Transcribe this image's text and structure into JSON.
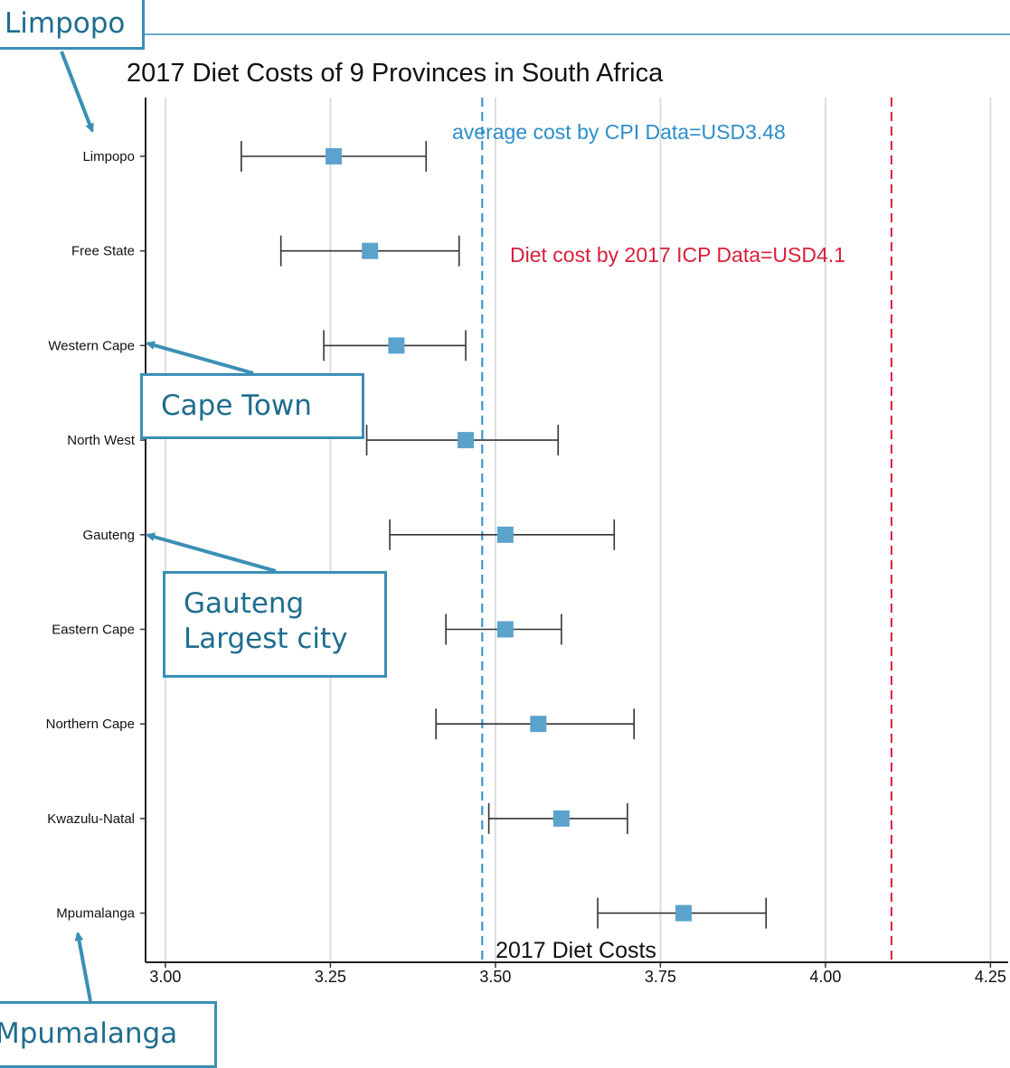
{
  "chart_data": {
    "type": "errorbar",
    "title": "2017 Diet Costs of 9 Provinces in South Africa",
    "xlabel": "2017 Diet Costs",
    "ylabel": "",
    "xlim": [
      2.97,
      4.27
    ],
    "xticks": [
      "3.00",
      "3.25",
      "3.50",
      "3.75",
      "4.00",
      "4.25"
    ],
    "grid": true,
    "categories": [
      "Limpopo",
      "Free State",
      "Western Cape",
      "North West",
      "Gauteng",
      "Eastern Cape",
      "Northern Cape",
      "Kwazulu-Natal",
      "Mpumalanga"
    ],
    "series": [
      {
        "values": [
          3.255,
          3.31,
          3.35,
          3.455,
          3.515,
          3.515,
          3.565,
          3.6,
          3.785
        ],
        "lower": [
          3.115,
          3.175,
          3.24,
          3.305,
          3.34,
          3.425,
          3.41,
          3.49,
          3.655
        ],
        "upper": [
          3.395,
          3.445,
          3.455,
          3.595,
          3.68,
          3.6,
          3.71,
          3.7,
          3.91
        ],
        "color": "#5ba3cc"
      }
    ],
    "reference_lines": [
      {
        "x": 3.48,
        "label": "average cost by CPI Data=USD3.48",
        "color": "#2c8fc9",
        "dash": true
      },
      {
        "x": 4.1,
        "label": "Diet cost by 2017 ICP Data=USD4.1",
        "color": "#d81f3c",
        "dash": true
      }
    ]
  },
  "callouts": {
    "limpopo": "Limpopo",
    "cape_town": "Cape Town",
    "gauteng": "Gauteng\nLargest city",
    "mpumalanga": "Mpumalanga"
  },
  "colors": {
    "accent": "#3a8fb5",
    "marker": "#5ba3cc",
    "cpi_line": "#2c8fc9",
    "icp_line": "#d81f3c"
  }
}
